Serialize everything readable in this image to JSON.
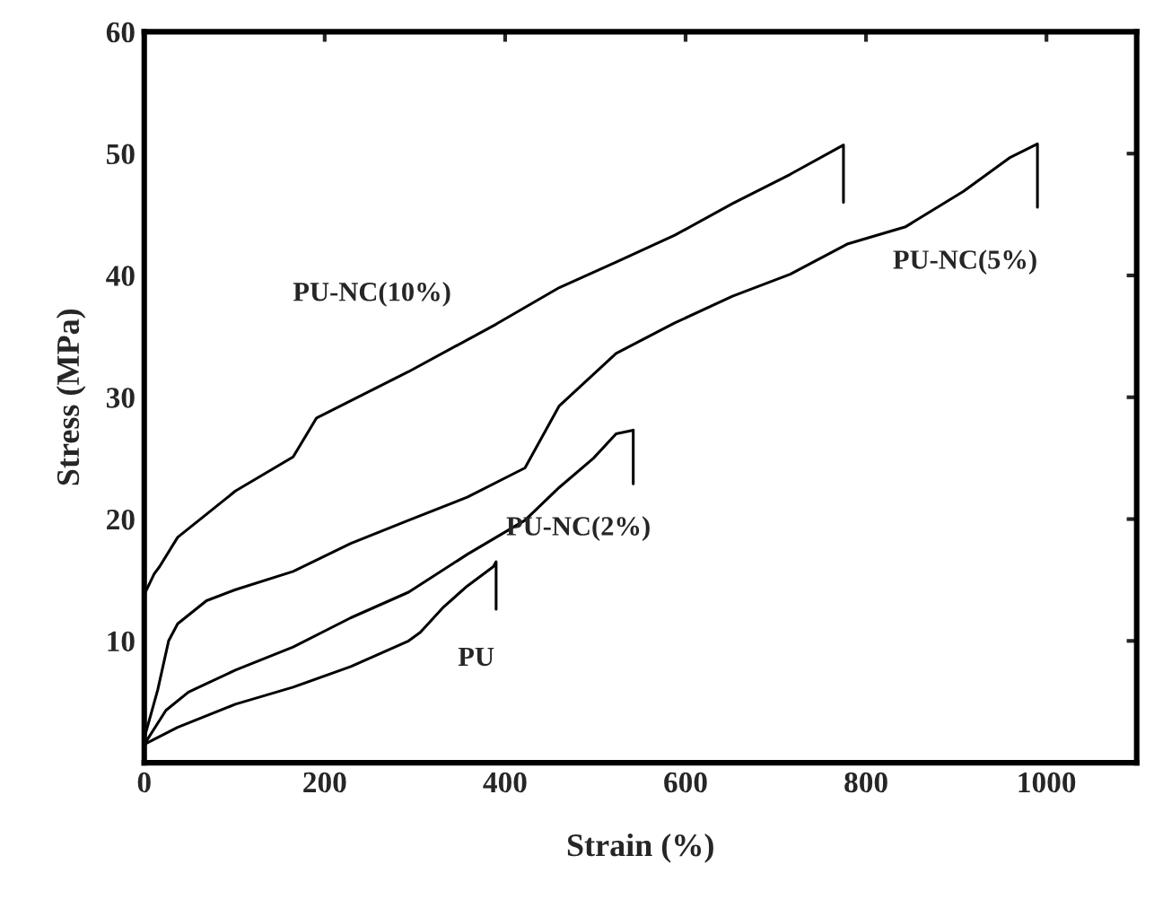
{
  "chart_data": {
    "type": "line",
    "xlabel": "Strain (%)",
    "ylabel": "Stress (MPa)",
    "xlim": [
      0,
      1100
    ],
    "ylim": [
      0,
      60
    ],
    "xticks": [
      0,
      200,
      400,
      600,
      800,
      1000
    ],
    "yticks": [
      10,
      20,
      30,
      40,
      50,
      60
    ],
    "grid": false,
    "legend": false,
    "marker": "none",
    "line_style": "solid",
    "series": [
      {
        "name": "PU-NC(10%)",
        "color": "#000000",
        "x": [
          0,
          0,
          11,
          17,
          37,
          69,
          101,
          165,
          191,
          293,
          390,
          460,
          523,
          588,
          652,
          716,
          775,
          775
        ],
        "values": [
          1.5,
          13.8,
          15.5,
          16.1,
          18.5,
          20.4,
          22.3,
          25.1,
          28.3,
          32.1,
          36,
          39,
          41.1,
          43.3,
          45.9,
          48.3,
          50.7,
          46
        ]
      },
      {
        "name": "PU-NC(5%)",
        "color": "#000000",
        "x": [
          0,
          15,
          27,
          37,
          69,
          101,
          165,
          229,
          293,
          358,
          422,
          460,
          523,
          588,
          652,
          716,
          780,
          844,
          908,
          960,
          990,
          990
        ],
        "values": [
          2,
          6,
          10,
          11.4,
          13.3,
          14.2,
          15.7,
          18,
          19.9,
          21.8,
          24.2,
          29.3,
          33.6,
          36.1,
          38.3,
          40.1,
          42.6,
          44,
          46.9,
          49.7,
          50.8,
          45.6
        ]
      },
      {
        "name": "PU-NC(2%)",
        "color": "#000000",
        "x": [
          0,
          24,
          49,
          101,
          165,
          229,
          293,
          358,
          390,
          422,
          460,
          498,
          523,
          542,
          542
        ],
        "values": [
          1.5,
          4.3,
          5.8,
          7.6,
          9.5,
          11.9,
          14,
          17.1,
          18.5,
          19.9,
          22.6,
          25,
          27,
          27.3,
          22.9
        ]
      },
      {
        "name": "PU",
        "color": "#000000",
        "x": [
          0,
          37,
          101,
          165,
          229,
          293,
          306,
          332,
          358,
          387,
          390,
          390
        ],
        "values": [
          1.5,
          2.9,
          4.8,
          6.2,
          7.9,
          10,
          10.7,
          12.8,
          14.5,
          16.1,
          16.5,
          12.6
        ]
      }
    ]
  }
}
